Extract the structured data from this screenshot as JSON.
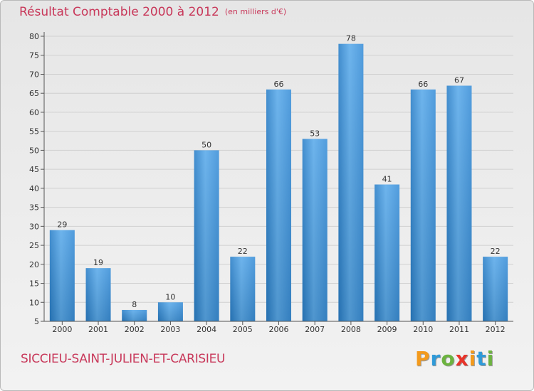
{
  "chart_data": {
    "type": "bar",
    "title": "Résultat Comptable 2000 à 2012",
    "subtitle": "(en milliers d'€)",
    "categories": [
      "2000",
      "2001",
      "2002",
      "2003",
      "2004",
      "2005",
      "2006",
      "2007",
      "2008",
      "2009",
      "2010",
      "2011",
      "2012"
    ],
    "values": [
      29,
      19,
      8,
      10,
      50,
      22,
      66,
      53,
      78,
      41,
      66,
      67,
      22
    ],
    "ylim": [
      5,
      80
    ],
    "yticks": [
      5,
      10,
      15,
      20,
      25,
      30,
      35,
      40,
      45,
      50,
      55,
      60,
      65,
      70,
      75,
      80
    ],
    "xlabel": "",
    "ylabel": "",
    "grid": true,
    "bar_color": "#3b8fd6"
  },
  "location": "SICCIEU-SAINT-JULIEN-ET-CARISIEU",
  "logo": {
    "letters": [
      "P",
      "r",
      "o",
      "x",
      "i",
      "t",
      "i"
    ],
    "colors": [
      "#f39a1c",
      "#2f9ad8",
      "#6cb33f",
      "#e8342a",
      "#f39a1c",
      "#2f9ad8",
      "#6cb33f"
    ]
  }
}
